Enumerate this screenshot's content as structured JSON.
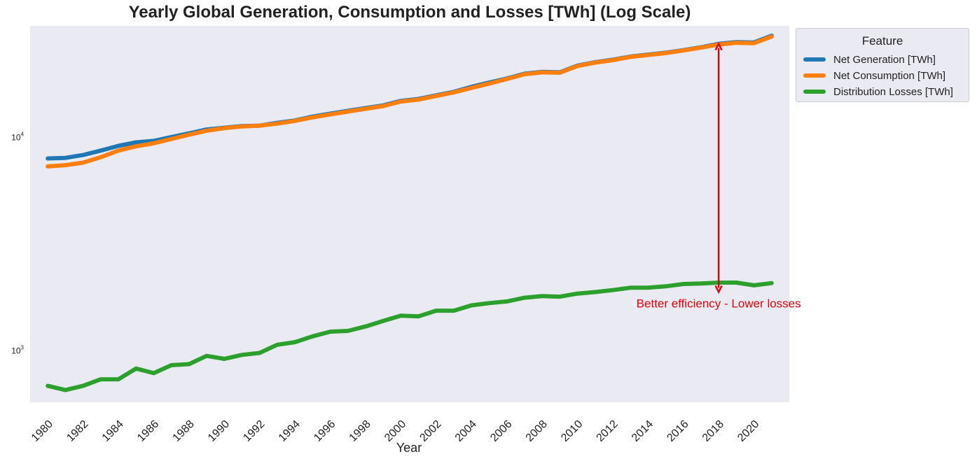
{
  "chart_data": {
    "type": "line",
    "title": "Yearly Global Generation, Consumption and Losses [TWh] (Log Scale)",
    "xlabel": "Year",
    "ylabel": "",
    "yscale": "log",
    "ylim": [
      570,
      33000
    ],
    "xlim": [
      1979,
      2022
    ],
    "grid": false,
    "legend": {
      "title": "Feature",
      "position": "outside-top-right"
    },
    "x": [
      1980,
      1981,
      1982,
      1983,
      1984,
      1985,
      1986,
      1987,
      1988,
      1989,
      1990,
      1991,
      1992,
      1993,
      1994,
      1995,
      1996,
      1997,
      1998,
      1999,
      2000,
      2001,
      2002,
      2003,
      2004,
      2005,
      2006,
      2007,
      2008,
      2009,
      2010,
      2011,
      2012,
      2013,
      2014,
      2015,
      2016,
      2017,
      2018,
      2019,
      2020,
      2021
    ],
    "x_ticks": [
      1980,
      1982,
      1984,
      1986,
      1988,
      1990,
      1992,
      1994,
      1996,
      1998,
      2000,
      2002,
      2004,
      2006,
      2008,
      2010,
      2012,
      2014,
      2016,
      2018,
      2020
    ],
    "y_ticks": [
      {
        "value": 10000,
        "base": "10",
        "exp": "4"
      },
      {
        "value": 1000,
        "base": "10",
        "exp": "3"
      }
    ],
    "series": [
      {
        "name": "Net Generation [TWh]",
        "color": "#1f77b4",
        "values": [
          7900,
          7950,
          8200,
          8600,
          9050,
          9400,
          9550,
          9950,
          10350,
          10800,
          11000,
          11200,
          11250,
          11600,
          11900,
          12400,
          12800,
          13200,
          13600,
          14000,
          14700,
          15000,
          15600,
          16200,
          17100,
          17900,
          18700,
          19700,
          20100,
          20000,
          21500,
          22300,
          22900,
          23700,
          24200,
          24700,
          25400,
          26200,
          27200,
          27700,
          27600,
          29700
        ]
      },
      {
        "name": "Net Consumption [TWh]",
        "color": "#ff7f0e",
        "values": [
          7250,
          7350,
          7550,
          8000,
          8600,
          9000,
          9300,
          9750,
          10200,
          10650,
          10950,
          11150,
          11250,
          11500,
          11850,
          12300,
          12700,
          13100,
          13500,
          13900,
          14600,
          14900,
          15500,
          16100,
          16900,
          17700,
          18600,
          19600,
          20000,
          19900,
          21400,
          22200,
          22800,
          23600,
          24100,
          24600,
          25300,
          26100,
          27000,
          27500,
          27400,
          29400
        ]
      },
      {
        "name": "Distribution Losses [TWh]",
        "color": "#2ca02c",
        "values": [
          680,
          650,
          680,
          730,
          730,
          820,
          780,
          850,
          860,
          940,
          910,
          950,
          970,
          1060,
          1090,
          1160,
          1220,
          1230,
          1290,
          1370,
          1450,
          1440,
          1530,
          1530,
          1620,
          1660,
          1690,
          1760,
          1790,
          1780,
          1840,
          1870,
          1910,
          1960,
          1960,
          1990,
          2040,
          2050,
          2070,
          2070,
          2010,
          2060
        ]
      }
    ],
    "annotation": {
      "text": "Better efficiency - Lower losses",
      "x": 2018,
      "y_top": 27200,
      "y_bottom": 1870,
      "color": "#e8000b"
    }
  }
}
